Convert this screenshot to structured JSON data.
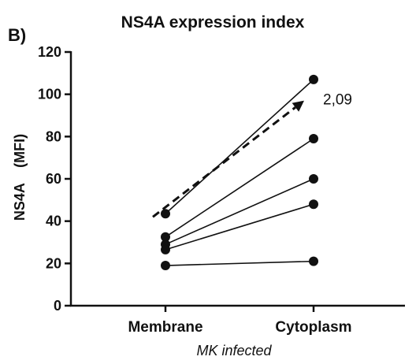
{
  "chart_data": {
    "type": "scatter",
    "panel_label": "B)",
    "title": "NS4A expression index",
    "ylabel": "NS4A    (MFI)",
    "xlabel": "MK infected",
    "categories": [
      "Membrane",
      "Cytoplasm"
    ],
    "ylim": [
      0,
      120
    ],
    "yticks": [
      "0",
      "20",
      "40",
      "60",
      "80",
      "100",
      "120"
    ],
    "grid": false,
    "paired_series": [
      {
        "values": [
          43.5,
          107
        ]
      },
      {
        "values": [
          32.5,
          79
        ]
      },
      {
        "values": [
          29,
          60
        ]
      },
      {
        "values": [
          26.5,
          48
        ]
      },
      {
        "values": [
          19,
          21
        ]
      }
    ],
    "trend_arrow": {
      "from": 42,
      "to": 97,
      "style": "dashed",
      "label": "2,09"
    },
    "colors": {
      "marker": "#111111",
      "line": "#111111",
      "axis": "#111111"
    }
  }
}
